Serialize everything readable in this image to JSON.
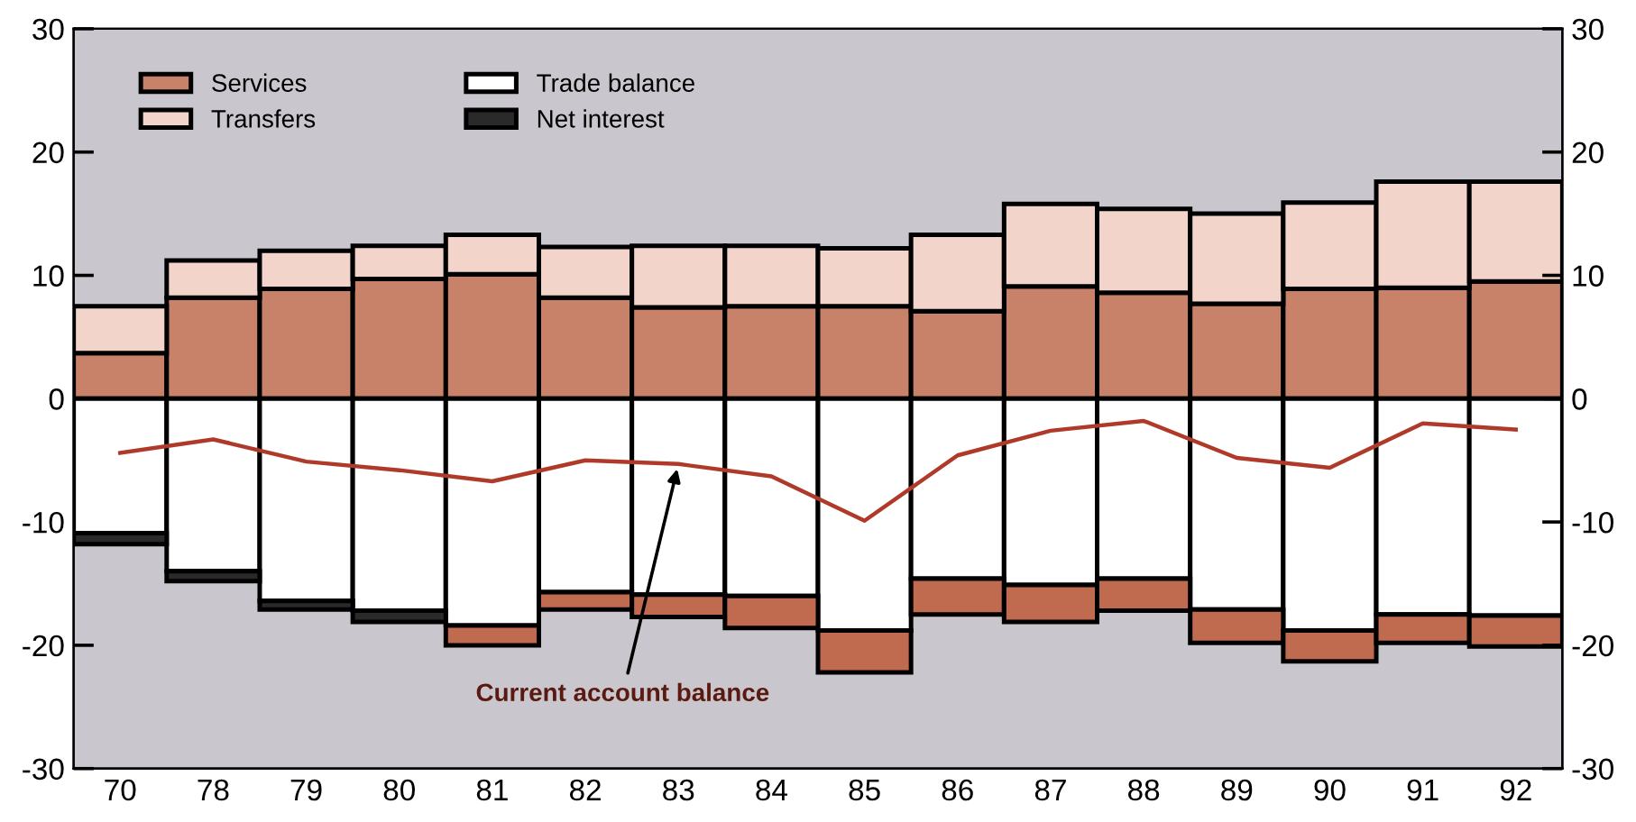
{
  "chart_data": {
    "type": "bar",
    "stacked": true,
    "categories": [
      "70",
      "78",
      "79",
      "80",
      "81",
      "82",
      "83",
      "84",
      "85",
      "86",
      "87",
      "88",
      "89",
      "90",
      "91",
      "92"
    ],
    "series": [
      {
        "name": "Services",
        "color": "#c8826a",
        "values": [
          3.7,
          8.2,
          8.9,
          9.7,
          10.1,
          8.2,
          7.4,
          7.5,
          7.5,
          7.1,
          9.1,
          8.6,
          7.7,
          8.9,
          9.0,
          9.5
        ]
      },
      {
        "name": "Transfers",
        "color": "#f2d4ca",
        "values": [
          3.8,
          3.0,
          3.1,
          2.7,
          3.2,
          4.1,
          5.0,
          4.9,
          4.7,
          6.2,
          6.7,
          6.8,
          7.3,
          7.0,
          8.6,
          8.1
        ]
      },
      {
        "name": "Trade balance",
        "color": "#ffffff",
        "values": [
          -10.9,
          -14.0,
          -16.4,
          -17.2,
          -18.4,
          -15.7,
          -15.9,
          -16.0,
          -18.8,
          -14.6,
          -15.1,
          -14.6,
          -17.1,
          -18.8,
          -17.5,
          -17.6
        ]
      },
      {
        "name": "Net interest",
        "color": "#2a2a2a",
        "colors": [
          "#2a2a2a",
          "#2a2a2a",
          "#2a2a2a",
          "#2a2a2a",
          "#c06a50",
          "#c06a50",
          "#c06a50",
          "#c06a50",
          "#c06a50",
          "#c06a50",
          "#c06a50",
          "#c06a50",
          "#c06a50",
          "#c06a50",
          "#c06a50",
          "#c06a50"
        ],
        "values": [
          -0.9,
          -0.8,
          -0.7,
          -0.9,
          -1.6,
          -1.4,
          -1.8,
          -2.6,
          -3.4,
          -2.9,
          -3.0,
          -2.6,
          -2.7,
          -2.5,
          -2.3,
          -2.5
        ]
      },
      {
        "type": "line",
        "color": "#b03a2a",
        "values": [
          -4.4,
          -3.3,
          -5.1,
          -5.8,
          -6.7,
          -5.0,
          -5.3,
          -6.3,
          -9.9,
          -4.6,
          -2.6,
          -1.8,
          -4.8,
          -5.6,
          -2.0,
          -2.5
        ]
      }
    ],
    "ylim": [
      -30,
      30
    ],
    "yticks": [
      -30,
      -20,
      -10,
      0,
      10,
      20,
      30
    ],
    "y2lim": [
      -30,
      30
    ],
    "y2ticks": [
      -30,
      -20,
      -10,
      0,
      10,
      20,
      30
    ],
    "annotations": [
      {
        "text": "Current account balance",
        "x": "83",
        "y": -5.3
      }
    ],
    "legend": "top left",
    "grid": false
  }
}
